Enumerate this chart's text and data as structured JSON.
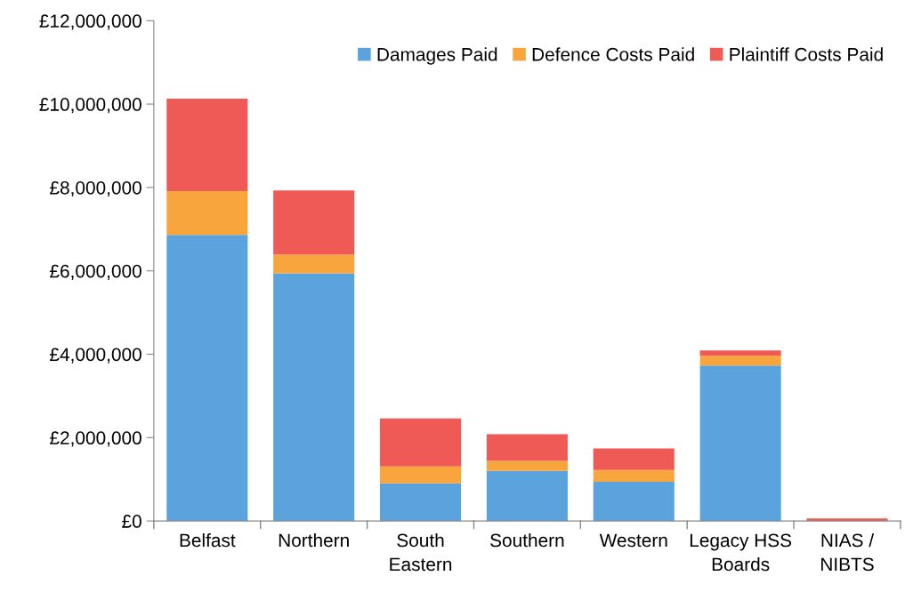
{
  "chart_data": {
    "type": "bar",
    "stacked": true,
    "categories": [
      "Belfast",
      "Northern",
      "South\nEastern",
      "Southern",
      "Western",
      "Legacy HSS\nBoards",
      "NIAS /\nNIBTS"
    ],
    "series": [
      {
        "name": "Damages Paid",
        "color": "#5ba3dc",
        "values": [
          6860000,
          5940000,
          900000,
          1200000,
          940000,
          3730000,
          null
        ]
      },
      {
        "name": "Defence Costs Paid",
        "color": "#f9a53d",
        "values": [
          1050000,
          450000,
          410000,
          240000,
          280000,
          230000,
          null
        ]
      },
      {
        "name": "Plaintiff Costs Paid",
        "color": "#f05a56",
        "values": [
          2220000,
          1540000,
          1150000,
          640000,
          520000,
          130000,
          60000
        ]
      }
    ],
    "ylim": [
      0,
      12000000
    ],
    "yticks": [
      {
        "value": 0,
        "label": "£0"
      },
      {
        "value": 2000000,
        "label": "£2,000,000"
      },
      {
        "value": 4000000,
        "label": "£4,000,000"
      },
      {
        "value": 6000000,
        "label": "£6,000,000"
      },
      {
        "value": 8000000,
        "label": "£8,000,000"
      },
      {
        "value": 10000000,
        "label": "£10,000,000"
      },
      {
        "value": 12000000,
        "label": "£12,000,000"
      }
    ],
    "grid": false,
    "legend": "top right"
  }
}
